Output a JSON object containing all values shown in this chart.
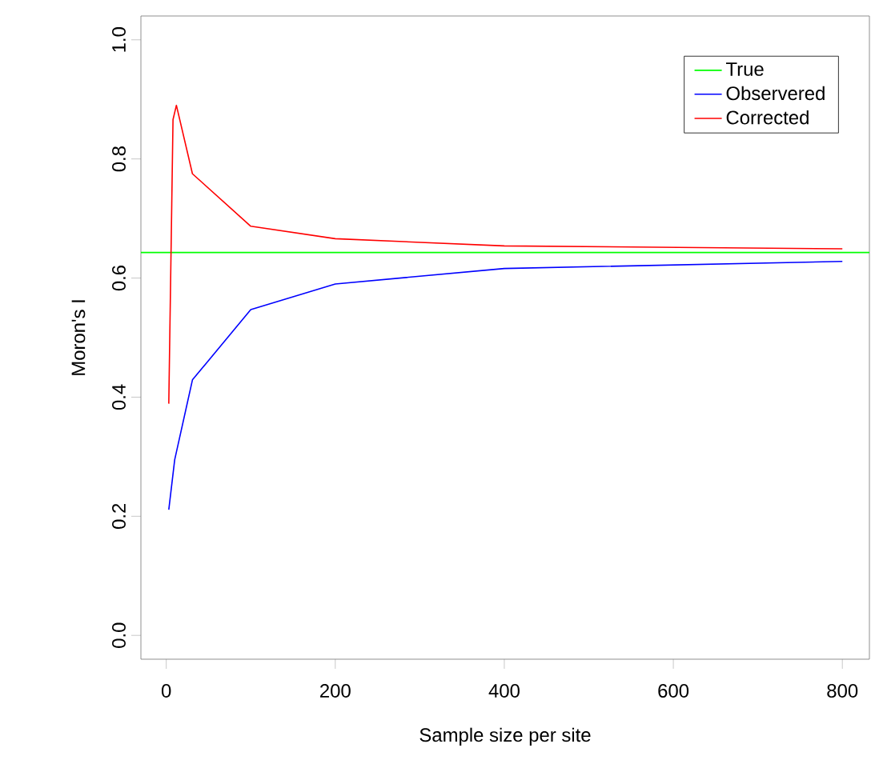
{
  "chart_data": {
    "type": "line",
    "xlabel": "Sample size per site",
    "ylabel": "Moron's I",
    "xlim": [
      -30,
      832
    ],
    "ylim": [
      -0.04,
      1.04
    ],
    "xticks": [
      0,
      200,
      400,
      600,
      800
    ],
    "yticks": [
      {
        "value": 0,
        "label": "0.0"
      },
      {
        "value": 0.2,
        "label": "0.2"
      },
      {
        "value": 0.4,
        "label": "0.4"
      },
      {
        "value": 0.6,
        "label": "0.6"
      },
      {
        "value": 0.8,
        "label": "0.8"
      },
      {
        "value": 1,
        "label": "1.0"
      }
    ],
    "grid": false,
    "legend": "top right",
    "marker": "none",
    "line_style": "solid",
    "ref_lines": [
      {
        "axis": "y",
        "value": 0.643,
        "label": "True",
        "color": "#00ff00"
      }
    ],
    "series": [
      {
        "name": "Observered",
        "color": "#0000ff",
        "x": [
          3,
          10,
          31,
          100,
          200,
          400,
          800
        ],
        "values": [
          0.211,
          0.295,
          0.429,
          0.547,
          0.59,
          0.616,
          0.628
        ]
      },
      {
        "name": "Corrected",
        "color": "#ff0000",
        "x": [
          3,
          8,
          12,
          31,
          100,
          200,
          400,
          800
        ],
        "values": [
          0.389,
          0.866,
          0.89,
          0.775,
          0.687,
          0.666,
          0.654,
          0.649
        ]
      }
    ]
  }
}
